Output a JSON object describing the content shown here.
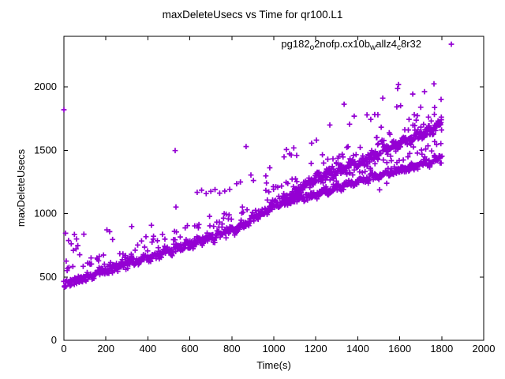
{
  "window": {
    "background": "#ffffff",
    "text_color": "#000000"
  },
  "chart_data": {
    "type": "scatter",
    "title": "maxDeleteUsecs vs Time for qr100.L1",
    "xlabel": "Time(s)",
    "ylabel": "maxDeleteUsecs",
    "xlim": [
      0,
      2000
    ],
    "ylim": [
      0,
      2400
    ],
    "x_ticks": [
      0,
      200,
      400,
      600,
      800,
      1000,
      1200,
      1400,
      1600,
      1800,
      2000
    ],
    "y_ticks": [
      0,
      500,
      1000,
      1500,
      2000
    ],
    "grid": false,
    "border": true,
    "marker": "plus",
    "marker_color": "#9400d3",
    "legend": {
      "position": "top-right-inside",
      "label_text": "pg182o2nofp.cx10bwallz4c8r32",
      "label_segments": [
        {
          "text": "pg182",
          "sub": false
        },
        {
          "text": "o",
          "sub": true
        },
        {
          "text": "2nofp.cx10b",
          "sub": false
        },
        {
          "text": "w",
          "sub": true
        },
        {
          "text": "allz4",
          "sub": false
        },
        {
          "text": "c",
          "sub": true
        },
        {
          "text": "8r32",
          "sub": false
        }
      ]
    },
    "series": [
      {
        "name": "pg182o2nofp.cx10bwallz4c8r32",
        "color": "#9400d3",
        "marker": "plus",
        "seed": 7,
        "bands": [
          {
            "name": "upper-band",
            "count": 950,
            "spread": 45,
            "wave_amp": 16,
            "wave_period": 52,
            "spike_prob": 0.13,
            "spike_min": 35,
            "spike_max": 165,
            "center_path": [
              [
                0,
                435
              ],
              [
                200,
                555
              ],
              [
                400,
                650
              ],
              [
                600,
                760
              ],
              [
                800,
                870
              ],
              [
                1000,
                1050
              ],
              [
                1200,
                1280
              ],
              [
                1400,
                1400
              ],
              [
                1600,
                1555
              ],
              [
                1800,
                1695
              ]
            ]
          },
          {
            "name": "lower-band",
            "count": 300,
            "spread": 34,
            "wave_amp": 10,
            "wave_period": 60,
            "spike_prob": 0.05,
            "spike_min": 25,
            "spike_max": 80,
            "center_path": [
              [
                1040,
                1080
              ],
              [
                1200,
                1150
              ],
              [
                1400,
                1255
              ],
              [
                1600,
                1345
              ],
              [
                1800,
                1430
              ]
            ]
          },
          {
            "name": "mid-scatter",
            "count": 40,
            "spread": 70,
            "wave_amp": 0,
            "wave_period": 50,
            "spike_prob": 0.0,
            "spike_min": 0,
            "spike_max": 0,
            "center_path": [
              [
                1150,
                1210
              ],
              [
                1800,
                1560
              ]
            ]
          }
        ],
        "outliers": [
          [
            0,
            1820
          ],
          [
            8,
            845
          ],
          [
            22,
            788
          ],
          [
            35,
            762
          ],
          [
            45,
            710
          ],
          [
            50,
            836
          ],
          [
            58,
            722
          ],
          [
            60,
            800
          ],
          [
            66,
            748
          ],
          [
            75,
            676
          ],
          [
            95,
            838
          ],
          [
            165,
            628
          ],
          [
            205,
            872
          ],
          [
            218,
            858
          ],
          [
            232,
            796
          ],
          [
            323,
            898
          ],
          [
            417,
            908
          ],
          [
            420,
            775
          ],
          [
            530,
            1498
          ],
          [
            534,
            1052
          ],
          [
            635,
            1168
          ],
          [
            656,
            1185
          ],
          [
            678,
            1158
          ],
          [
            700,
            1176
          ],
          [
            720,
            1190
          ],
          [
            742,
            1162
          ],
          [
            766,
            1178
          ],
          [
            790,
            1192
          ],
          [
            823,
            1236
          ],
          [
            841,
            1250
          ],
          [
            868,
            1530
          ],
          [
            891,
            1305
          ],
          [
            903,
            1262
          ],
          [
            962,
            1298
          ],
          [
            965,
            1242
          ],
          [
            981,
            1362
          ],
          [
            1049,
            1448
          ],
          [
            1060,
            1506
          ],
          [
            1075,
            1472
          ],
          [
            1083,
            1463
          ],
          [
            1095,
            1519
          ],
          [
            1109,
            1460
          ],
          [
            1180,
            1556
          ],
          [
            1203,
            1580
          ],
          [
            1267,
            1700
          ],
          [
            1335,
            1864
          ],
          [
            1361,
            1706
          ],
          [
            1383,
            1770
          ],
          [
            1444,
            1780
          ],
          [
            1462,
            1744
          ],
          [
            1481,
            1782
          ],
          [
            1489,
            1600
          ],
          [
            1496,
            1781
          ],
          [
            1504,
            1188
          ],
          [
            1519,
            1912
          ],
          [
            1538,
            1240
          ],
          [
            1586,
            1843
          ],
          [
            1590,
            1988
          ],
          [
            1594,
            2019
          ],
          [
            1604,
            1852
          ],
          [
            1662,
            1944
          ],
          [
            1669,
            1781
          ],
          [
            1700,
            1840
          ],
          [
            1718,
            1963
          ],
          [
            1737,
            1762
          ],
          [
            1750,
            1732
          ],
          [
            1763,
            2025
          ],
          [
            1766,
            1838
          ],
          [
            1775,
            1712
          ],
          [
            1786,
            1727
          ],
          [
            1797,
            1902
          ],
          [
            1798,
            1742
          ]
        ]
      }
    ]
  }
}
